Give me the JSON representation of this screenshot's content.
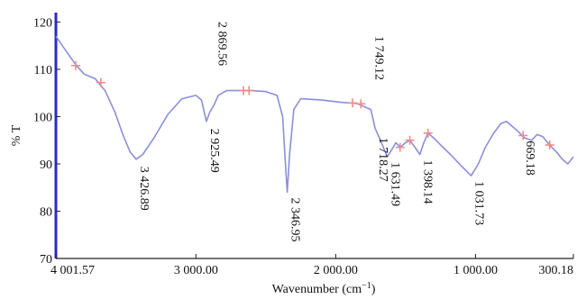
{
  "chart_data": {
    "type": "line",
    "xlabel_main": "Wavenumber (cm",
    "xlabel_sup": "−1",
    "xlabel_close": ")",
    "ylabel": "% T",
    "xlim": [
      4001.57,
      300.18
    ],
    "ylim": [
      70,
      122
    ],
    "x_ticks": [
      {
        "value": 4001.57,
        "label": "4 001.57"
      },
      {
        "value": 3000.0,
        "label": "3 000.00"
      },
      {
        "value": 2000.0,
        "label": "2 000.00"
      },
      {
        "value": 1000.0,
        "label": "1 000.00"
      },
      {
        "value": 300.18,
        "label": "300.18"
      }
    ],
    "y_ticks": [
      {
        "value": 70,
        "label": "70"
      },
      {
        "value": 80,
        "label": "80"
      },
      {
        "value": 90,
        "label": "90"
      },
      {
        "value": 100,
        "label": "100"
      },
      {
        "value": 110,
        "label": "110"
      },
      {
        "value": 120,
        "label": "120"
      }
    ],
    "series": [
      {
        "color": "#8b8fd8",
        "points": [
          [
            4001.57,
            117.0
          ],
          [
            3920,
            113.5
          ],
          [
            3860,
            111.0
          ],
          [
            3800,
            109.0
          ],
          [
            3720,
            108.0
          ],
          [
            3650,
            105.5
          ],
          [
            3580,
            101.0
          ],
          [
            3520,
            96.0
          ],
          [
            3470,
            92.5
          ],
          [
            3426.89,
            91.0
          ],
          [
            3380,
            92.0
          ],
          [
            3300,
            95.5
          ],
          [
            3200,
            100.5
          ],
          [
            3100,
            103.8
          ],
          [
            3000,
            104.5
          ],
          [
            2960,
            103.5
          ],
          [
            2925.49,
            99.0
          ],
          [
            2900,
            101.0
          ],
          [
            2869.56,
            102.5
          ],
          [
            2840,
            104.5
          ],
          [
            2780,
            105.5
          ],
          [
            2700,
            105.5
          ],
          [
            2600,
            105.5
          ],
          [
            2500,
            105.3
          ],
          [
            2420,
            104.5
          ],
          [
            2380,
            100.0
          ],
          [
            2360,
            90.0
          ],
          [
            2346.95,
            84.0
          ],
          [
            2330,
            92.0
          ],
          [
            2300,
            101.5
          ],
          [
            2250,
            103.8
          ],
          [
            2100,
            103.5
          ],
          [
            1950,
            103.0
          ],
          [
            1850,
            102.8
          ],
          [
            1749.12,
            101.5
          ],
          [
            1718.27,
            97.5
          ],
          [
            1680,
            95.0
          ],
          [
            1631.49,
            91.5
          ],
          [
            1600,
            93.0
          ],
          [
            1570,
            94.5
          ],
          [
            1540,
            93.5
          ],
          [
            1500,
            94.5
          ],
          [
            1470,
            95.0
          ],
          [
            1440,
            93.8
          ],
          [
            1398.14,
            92.0
          ],
          [
            1370,
            94.5
          ],
          [
            1340,
            96.5
          ],
          [
            1300,
            95.5
          ],
          [
            1250,
            94.0
          ],
          [
            1180,
            92.0
          ],
          [
            1100,
            89.5
          ],
          [
            1031.73,
            87.5
          ],
          [
            980,
            90.0
          ],
          [
            930,
            93.5
          ],
          [
            870,
            96.5
          ],
          [
            820,
            98.5
          ],
          [
            780,
            99.0
          ],
          [
            740,
            98.0
          ],
          [
            700,
            97.0
          ],
          [
            650,
            95.5
          ],
          [
            600,
            95.0
          ],
          [
            560,
            96.2
          ],
          [
            520,
            95.8
          ],
          [
            470,
            94.0
          ],
          [
            420,
            92.5
          ],
          [
            380,
            91.0
          ],
          [
            340,
            90.0
          ],
          [
            300.18,
            91.5
          ]
        ]
      }
    ],
    "peaks": [
      {
        "x": 3426.89,
        "y": 91.0,
        "label": "3 426.89"
      },
      {
        "x": 2925.49,
        "y": 99.0,
        "label": "2 925.49"
      },
      {
        "x": 2869.56,
        "y": 102.5,
        "label": "2 869.56"
      },
      {
        "x": 2346.95,
        "y": 84.0,
        "label": "2 346.95"
      },
      {
        "x": 1749.12,
        "y": 101.5,
        "label": "1 749.12"
      },
      {
        "x": 1718.27,
        "y": 97.5,
        "label": "1 718.27"
      },
      {
        "x": 1631.49,
        "y": 91.5,
        "label": "1 631.49"
      },
      {
        "x": 1398.14,
        "y": 92.0,
        "label": "1 398.14"
      },
      {
        "x": 1031.73,
        "y": 87.5,
        "label": "1 031.73"
      },
      {
        "x": 669.18,
        "y": 96.8,
        "label": "669.18"
      }
    ],
    "markers": [
      {
        "x": 3860,
        "y": 110.8
      },
      {
        "x": 3680,
        "y": 107.2
      },
      {
        "x": 2660,
        "y": 105.5
      },
      {
        "x": 2620,
        "y": 105.5
      },
      {
        "x": 1880,
        "y": 102.9
      },
      {
        "x": 1820,
        "y": 102.7
      },
      {
        "x": 1540,
        "y": 93.5
      },
      {
        "x": 1470,
        "y": 95.0
      },
      {
        "x": 1340,
        "y": 96.5
      },
      {
        "x": 660,
        "y": 96.0
      },
      {
        "x": 470,
        "y": 94.0
      }
    ],
    "marker_color": "#f08a8a",
    "grid": false
  }
}
